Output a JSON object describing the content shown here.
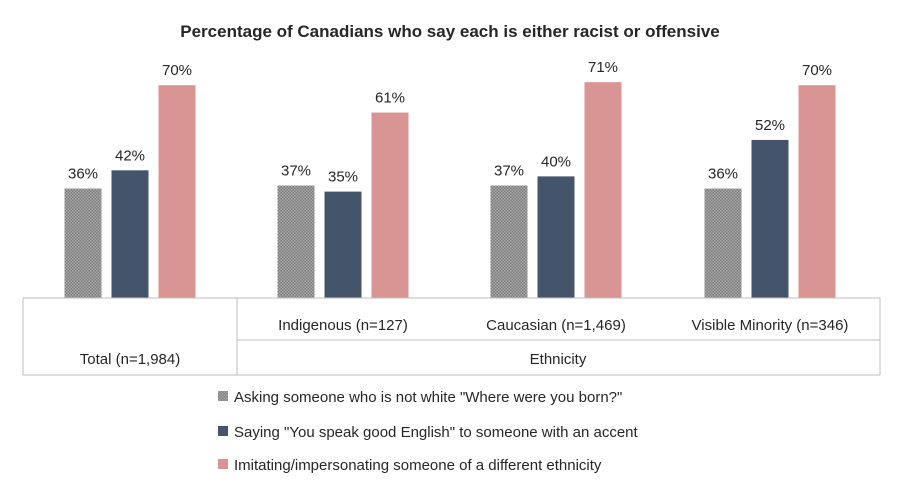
{
  "chart_data": {
    "type": "bar",
    "title": "Percentage of Canadians who say each is either racist or offensive",
    "categories": [
      "Total (n=1,984)",
      "Indigenous (n=127)",
      "Caucasian (n=1,469)",
      "Visible Minority (n=346)"
    ],
    "groups": [
      {
        "label": "Total (n=1,984)",
        "categories": [
          "Total (n=1,984)"
        ]
      },
      {
        "label": "Ethnicity",
        "categories": [
          "Indigenous (n=127)",
          "Caucasian (n=1,469)",
          "Visible Minority (n=346)"
        ]
      }
    ],
    "series": [
      {
        "name": "Asking someone who is not white \"Where were you born?\"",
        "values": [
          36,
          37,
          37,
          36
        ],
        "color": "#8c8c8c",
        "pattern": "dots"
      },
      {
        "name": "Saying \"You speak good English\" to someone with an accent",
        "values": [
          42,
          35,
          40,
          52
        ],
        "color": "#44546a"
      },
      {
        "name": "Imitating/impersonating someone of a different ethnicity",
        "values": [
          70,
          61,
          71,
          70
        ],
        "color": "#d99594"
      }
    ],
    "value_suffix": "%",
    "ylim": [
      0,
      75
    ],
    "grid": false,
    "legend_position": "bottom"
  }
}
